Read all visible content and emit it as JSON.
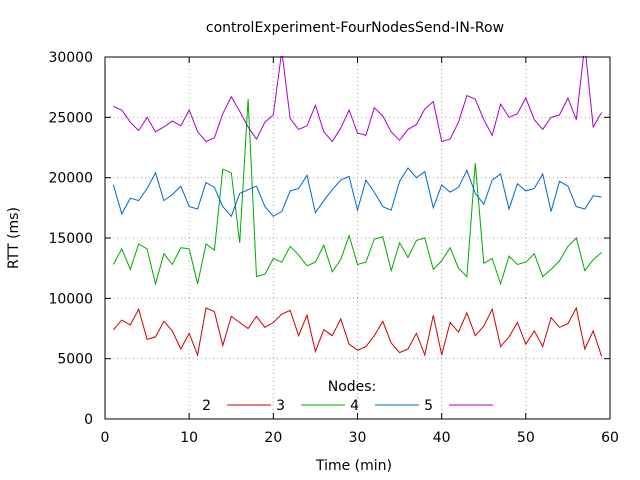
{
  "chart_data": {
    "type": "line",
    "title": "controlExperiment-FourNodesSend-IN-Row",
    "xlabel": "Time (min)",
    "ylabel": "RTT (ms)",
    "xlim": [
      0,
      60
    ],
    "ylim": [
      0,
      30000
    ],
    "xticks": [
      0,
      10,
      20,
      30,
      40,
      50,
      60
    ],
    "yticks": [
      0,
      5000,
      10000,
      15000,
      20000,
      25000,
      30000
    ],
    "grid": true,
    "legend_title": "Nodes:",
    "legend_position": "bottom-center",
    "series": [
      {
        "name": "2",
        "color": "#cc0000",
        "x": [
          1,
          2,
          3,
          4,
          5,
          6,
          7,
          8,
          9,
          10,
          11,
          12,
          13,
          14,
          15,
          16,
          17,
          18,
          19,
          20,
          21,
          22,
          23,
          24,
          25,
          26,
          27,
          28,
          29,
          30,
          31,
          32,
          33,
          34,
          35,
          36,
          37,
          38,
          39,
          40,
          41,
          42,
          43,
          44,
          45,
          46,
          47,
          48,
          49,
          50,
          51,
          52,
          53,
          54,
          55,
          56,
          57,
          58,
          59
        ],
        "y": [
          7400,
          8200,
          7800,
          9100,
          6600,
          6800,
          8100,
          7300,
          5800,
          7100,
          5300,
          9200,
          8900,
          6100,
          8500,
          8000,
          7500,
          8500,
          7600,
          8000,
          8700,
          9000,
          6900,
          8600,
          5600,
          7400,
          6900,
          8300,
          6200,
          5700,
          6000,
          6900,
          8100,
          6300,
          5500,
          5800,
          7100,
          5300,
          8600,
          5300,
          8000,
          7200,
          8800,
          6900,
          7700,
          9100,
          6000,
          6800,
          8000,
          6200,
          7300,
          6000,
          8400,
          7600,
          7900,
          9200,
          5800,
          7300,
          5200
        ]
      },
      {
        "name": "3",
        "color": "#00aa00",
        "x": [
          1,
          2,
          3,
          4,
          5,
          6,
          7,
          8,
          9,
          10,
          11,
          12,
          13,
          14,
          15,
          16,
          17,
          18,
          19,
          20,
          21,
          22,
          23,
          24,
          25,
          26,
          27,
          28,
          29,
          30,
          31,
          32,
          33,
          34,
          35,
          36,
          37,
          38,
          39,
          40,
          41,
          42,
          43,
          44,
          45,
          46,
          47,
          48,
          49,
          50,
          51,
          52,
          53,
          54,
          55,
          56,
          57,
          58,
          59
        ],
        "y": [
          12800,
          14100,
          12400,
          14500,
          14100,
          11200,
          13700,
          12800,
          14200,
          14100,
          11200,
          14500,
          14000,
          20700,
          20400,
          14600,
          26500,
          11800,
          12000,
          13300,
          13000,
          14300,
          13600,
          12700,
          13000,
          14400,
          12200,
          13200,
          15200,
          12800,
          13000,
          14900,
          15100,
          12300,
          14600,
          13400,
          14800,
          15000,
          12400,
          13100,
          14200,
          12500,
          11800,
          21200,
          12900,
          13300,
          11200,
          13500,
          12800,
          13000,
          13700,
          11800,
          12400,
          13100,
          14300,
          15000,
          12300,
          13200,
          13800
        ]
      },
      {
        "name": "4",
        "color": "#0066cc",
        "x": [
          1,
          2,
          3,
          4,
          5,
          6,
          7,
          8,
          9,
          10,
          11,
          12,
          13,
          14,
          15,
          16,
          17,
          18,
          19,
          20,
          21,
          22,
          23,
          24,
          25,
          26,
          27,
          28,
          29,
          30,
          31,
          32,
          33,
          34,
          35,
          36,
          37,
          38,
          39,
          40,
          41,
          42,
          43,
          44,
          45,
          46,
          47,
          48,
          49,
          50,
          51,
          52,
          53,
          54,
          55,
          56,
          57,
          58,
          59
        ],
        "y": [
          19400,
          17000,
          18300,
          18100,
          19100,
          20400,
          18100,
          18600,
          19300,
          17600,
          17400,
          19600,
          19200,
          17600,
          16800,
          18700,
          19000,
          19300,
          17600,
          16800,
          17200,
          18900,
          19100,
          20200,
          17100,
          18100,
          19000,
          19800,
          20100,
          17300,
          19800,
          18800,
          17600,
          17300,
          19700,
          20800,
          20000,
          20500,
          17500,
          19400,
          18800,
          19200,
          20600,
          18700,
          17800,
          19800,
          20300,
          17400,
          19500,
          18900,
          19100,
          20300,
          17200,
          19700,
          19300,
          17600,
          17400,
          18500,
          18400
        ]
      },
      {
        "name": "5",
        "color": "#aa00cc",
        "x": [
          1,
          2,
          3,
          4,
          5,
          6,
          7,
          8,
          9,
          10,
          11,
          12,
          13,
          14,
          15,
          16,
          17,
          18,
          19,
          20,
          21,
          22,
          23,
          24,
          25,
          26,
          27,
          28,
          29,
          30,
          31,
          32,
          33,
          34,
          35,
          36,
          37,
          38,
          39,
          40,
          41,
          42,
          43,
          44,
          45,
          46,
          47,
          48,
          49,
          50,
          51,
          52,
          53,
          54,
          55,
          56,
          57,
          58,
          59
        ],
        "y": [
          25900,
          25600,
          24600,
          23900,
          25000,
          23800,
          24200,
          24700,
          24300,
          25600,
          23800,
          23000,
          23300,
          25300,
          26700,
          25500,
          24200,
          23200,
          24600,
          25200,
          30500,
          24900,
          24000,
          24300,
          26000,
          23800,
          23000,
          24100,
          25600,
          23700,
          23500,
          25800,
          25100,
          23800,
          23100,
          24000,
          24400,
          25700,
          26300,
          23000,
          23200,
          24600,
          26800,
          26500,
          24800,
          23500,
          26100,
          25000,
          25300,
          26600,
          24800,
          24000,
          25000,
          25200,
          26600,
          24800,
          31000,
          24200,
          25400
        ]
      }
    ]
  }
}
